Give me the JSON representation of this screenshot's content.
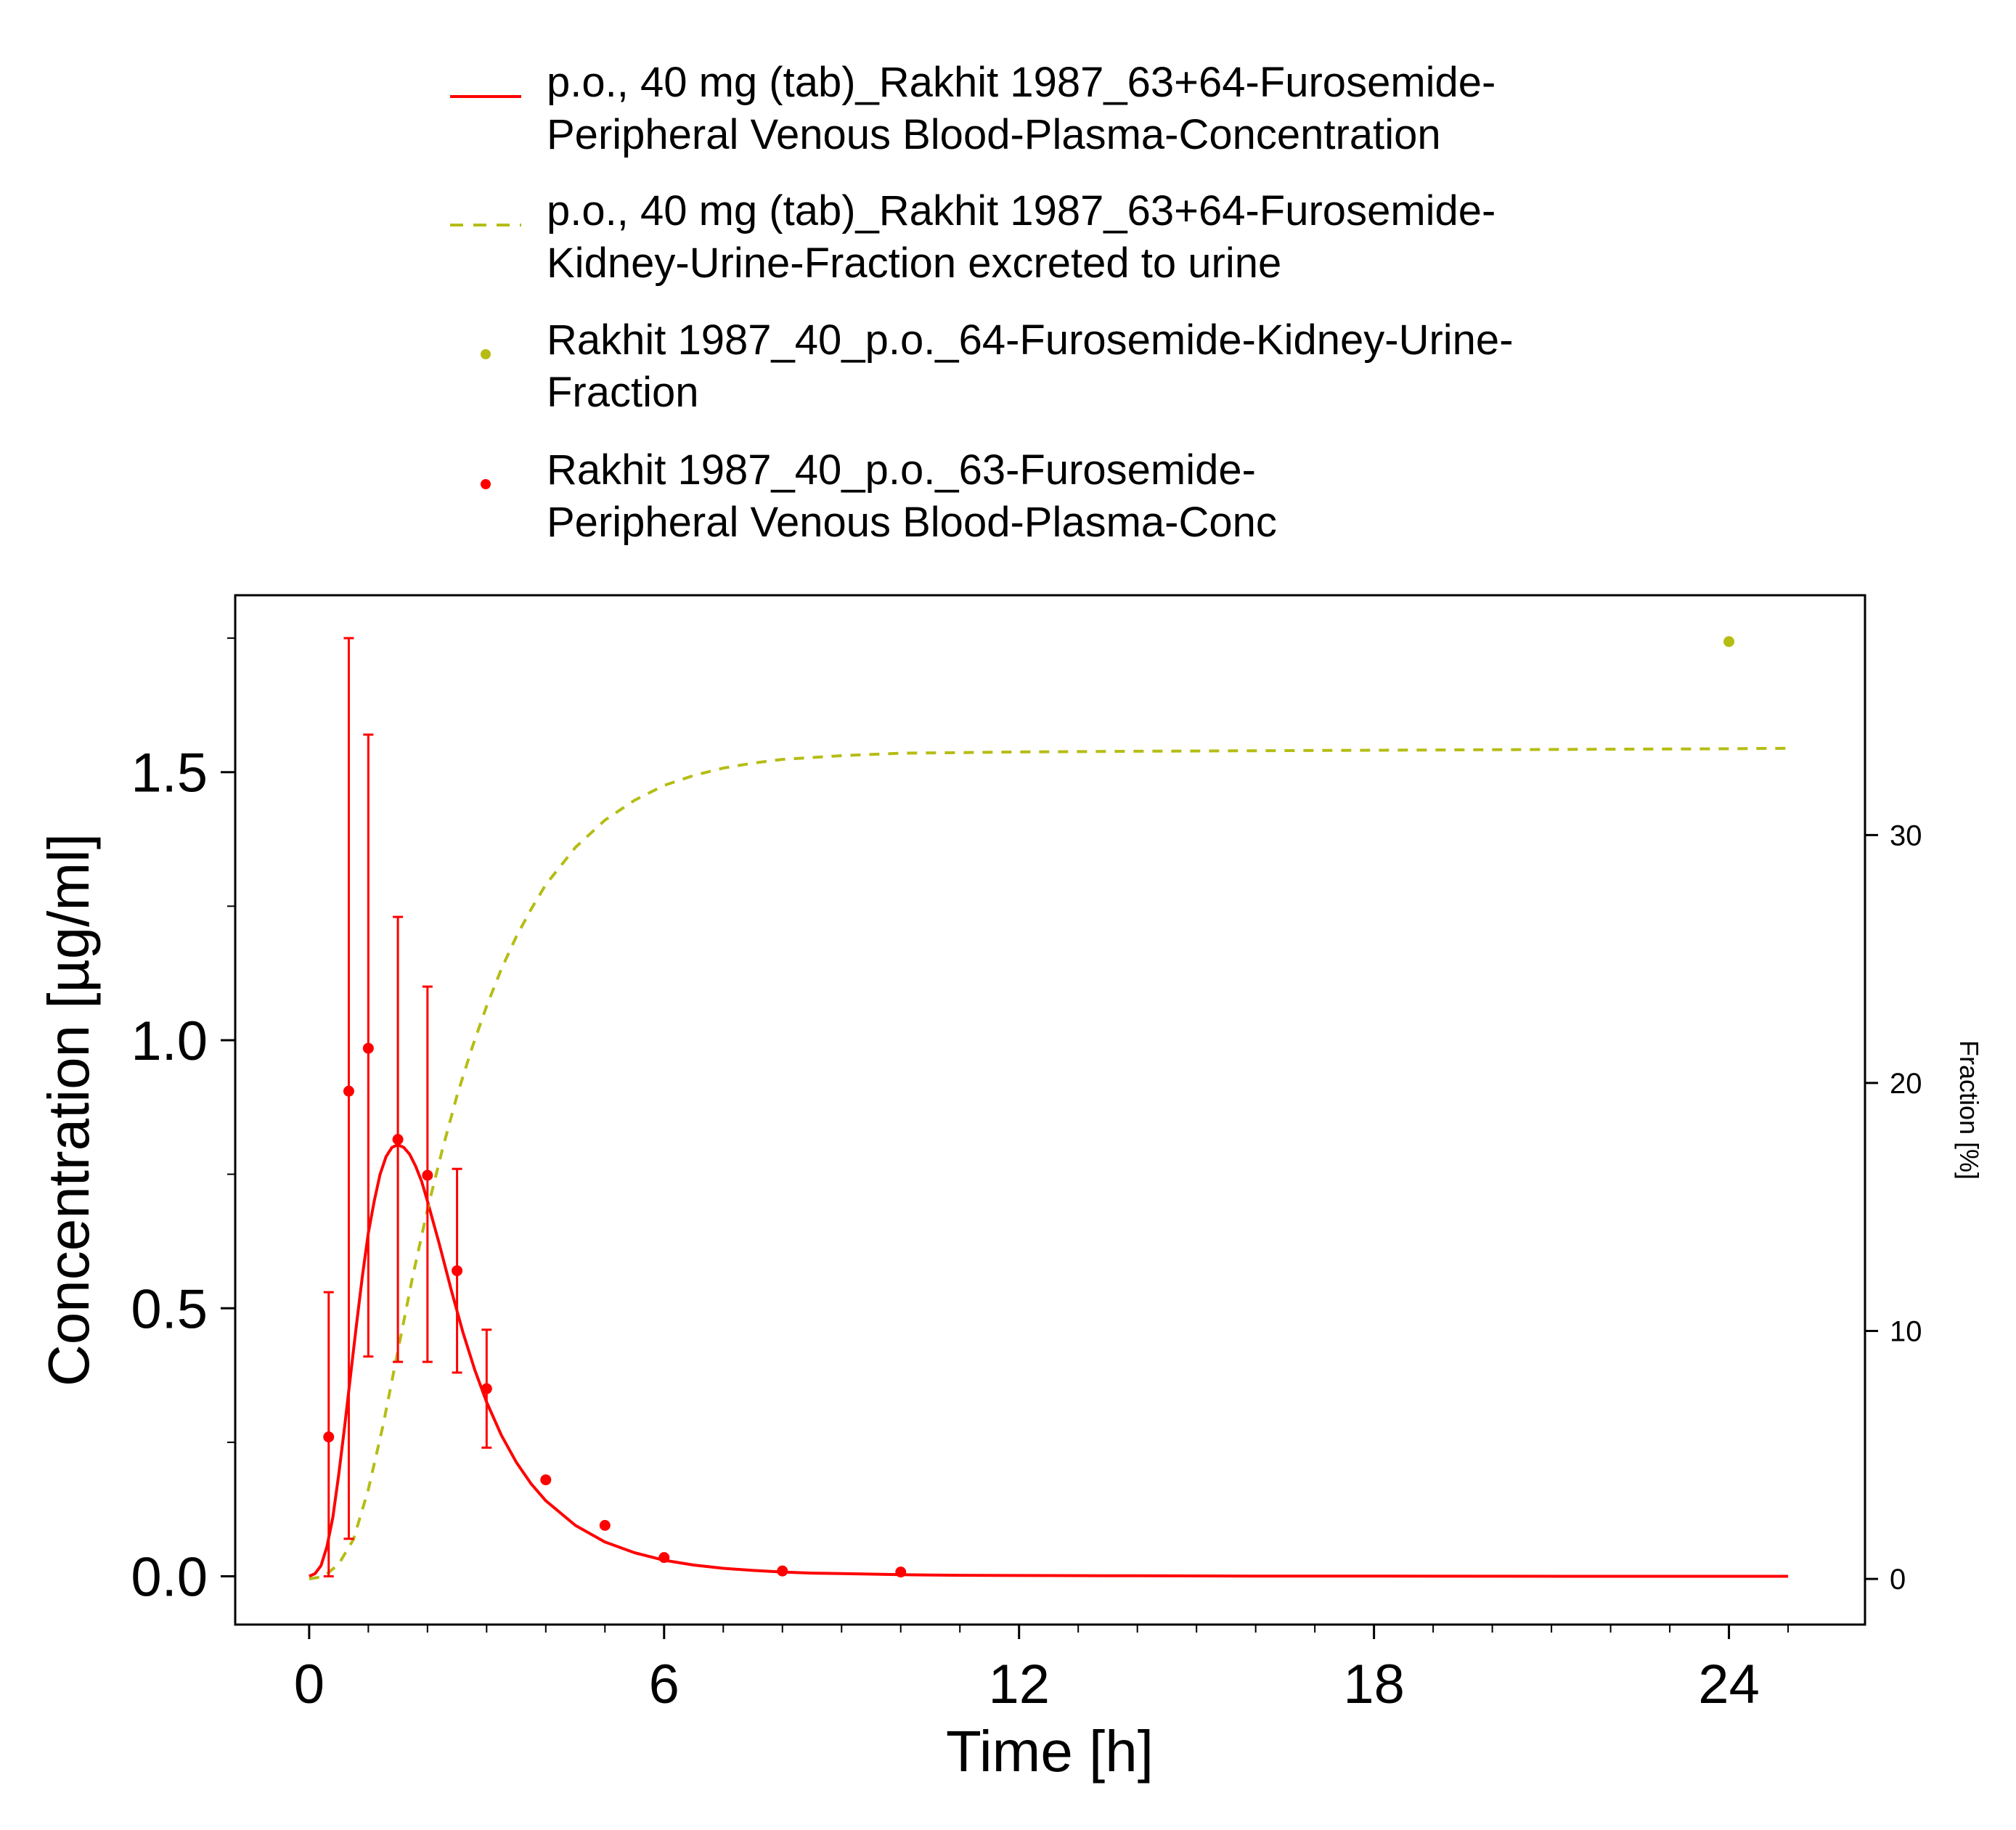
{
  "colors": {
    "sim_conc": "#ff0000",
    "sim_frac": "#b5bd14",
    "obs_frac": "#b5bd14",
    "obs_conc": "#ff0000",
    "axis": "#000000"
  },
  "legend": {
    "items": [
      {
        "line1": "p.o., 40 mg (tab)_Rakhit 1987_63+64-Furosemide-",
        "line2": "Peripheral Venous Blood-Plasma-Concentration",
        "style": "solid",
        "color_key": "sim_conc"
      },
      {
        "line1": "p.o., 40 mg (tab)_Rakhit 1987_63+64-Furosemide-",
        "line2": "Kidney-Urine-Fraction excreted to urine",
        "style": "dashed",
        "color_key": "sim_frac"
      },
      {
        "line1": "Rakhit 1987_40_p.o._64-Furosemide-Kidney-Urine-",
        "line2": "Fraction",
        "style": "point",
        "color_key": "obs_frac"
      },
      {
        "line1": "Rakhit 1987_40_p.o._63-Furosemide-",
        "line2": "Peripheral Venous Blood-Plasma-Conc",
        "style": "point",
        "color_key": "obs_conc"
      }
    ]
  },
  "chart_data": {
    "type": "line",
    "xlabel": "Time [h]",
    "ylabel": "Concentration [µg/ml]",
    "y2label": "Fraction [%]",
    "xlim": [
      -1.25,
      26.3
    ],
    "ylim": [
      -0.09,
      1.83
    ],
    "y2lim": [
      -1.84,
      39.67
    ],
    "x_ticks": [
      0,
      6,
      12,
      18,
      24
    ],
    "x_minor_ticks": [
      1,
      2,
      3,
      4,
      5,
      7,
      8,
      9,
      10,
      11,
      13,
      14,
      15,
      16,
      17,
      19,
      20,
      21,
      22,
      23,
      25
    ],
    "y_ticks": [
      0.0,
      0.5,
      1.0,
      1.5
    ],
    "y_tick_labels": [
      "0.0",
      "0.5",
      "1.0",
      "1.5"
    ],
    "y_minor_ticks": [
      0.25,
      0.75,
      1.25,
      1.75
    ],
    "y2_ticks": [
      0,
      10,
      20,
      30
    ],
    "grid": false,
    "legend_position": "top",
    "series": [
      {
        "name": "p.o., 40 mg (tab)_Rakhit 1987_63+64-Furosemide-Peripheral Venous Blood-Plasma-Concentration",
        "kind": "line",
        "axis": "left",
        "color_key": "sim_conc",
        "style": "solid",
        "x": [
          0,
          0.1,
          0.2,
          0.3,
          0.4,
          0.5,
          0.6,
          0.7,
          0.8,
          0.9,
          1.0,
          1.1,
          1.2,
          1.3,
          1.4,
          1.5,
          1.6,
          1.7,
          1.8,
          1.9,
          2.0,
          2.2,
          2.4,
          2.6,
          2.8,
          3.0,
          3.25,
          3.5,
          3.75,
          4.0,
          4.5,
          5.0,
          5.5,
          6.0,
          6.5,
          7.0,
          7.5,
          8.0,
          8.5,
          9.0,
          10.0,
          11.0,
          12.0,
          14.0,
          16.0,
          18.0,
          20.0,
          22.0,
          24.0,
          25.0
        ],
        "y": [
          0.0,
          0.005,
          0.02,
          0.055,
          0.11,
          0.19,
          0.28,
          0.375,
          0.47,
          0.56,
          0.64,
          0.7,
          0.75,
          0.783,
          0.8,
          0.805,
          0.8,
          0.787,
          0.765,
          0.737,
          0.7,
          0.62,
          0.535,
          0.455,
          0.385,
          0.325,
          0.263,
          0.213,
          0.173,
          0.141,
          0.095,
          0.064,
          0.044,
          0.03,
          0.021,
          0.015,
          0.011,
          0.008,
          0.006,
          0.005,
          0.003,
          0.002,
          0.0015,
          0.001,
          0.0005,
          0.0003,
          0.0002,
          0.0001,
          0.0001,
          0.0
        ]
      },
      {
        "name": "p.o., 40 mg (tab)_Rakhit 1987_63+64-Furosemide-Kidney-Urine-Fraction excreted to urine",
        "kind": "line",
        "axis": "right",
        "color_key": "sim_frac",
        "style": "dashed",
        "x": [
          0,
          0.25,
          0.5,
          0.75,
          1.0,
          1.25,
          1.5,
          1.75,
          2.0,
          2.25,
          2.5,
          2.75,
          3.0,
          3.25,
          3.5,
          3.75,
          4.0,
          4.5,
          5.0,
          5.5,
          6.0,
          6.5,
          7.0,
          7.5,
          8.0,
          9.0,
          10.0,
          12.0,
          14.0,
          16.0,
          18.0,
          20.0,
          22.0,
          24.0,
          25.0
        ],
        "y": [
          0.0,
          0.1,
          0.6,
          1.6,
          3.6,
          6.2,
          9.2,
          12.2,
          14.9,
          17.3,
          19.5,
          21.4,
          23.1,
          24.6,
          25.9,
          27.0,
          28.0,
          29.5,
          30.6,
          31.4,
          32.0,
          32.4,
          32.7,
          32.9,
          33.05,
          33.2,
          33.3,
          33.35,
          33.38,
          33.4,
          33.42,
          33.44,
          33.46,
          33.48,
          33.5
        ]
      },
      {
        "name": "Rakhit 1987_40_p.o._64-Furosemide-Kidney-Urine-Fraction",
        "kind": "points",
        "axis": "right",
        "color_key": "obs_frac",
        "x": [
          24.0
        ],
        "y": [
          37.8
        ]
      },
      {
        "name": "Rakhit 1987_40_p.o._63-Furosemide-Peripheral Venous Blood-Plasma-Conc",
        "kind": "points",
        "axis": "left",
        "color_key": "obs_conc",
        "x": [
          0.33,
          0.67,
          1.0,
          1.5,
          2.0,
          2.5,
          3.0,
          4.0,
          5.0,
          6.0,
          8.0,
          10.0
        ],
        "y": [
          0.26,
          0.905,
          0.985,
          0.815,
          0.748,
          0.57,
          0.35,
          0.18,
          0.095,
          0.035,
          0.01,
          0.008
        ],
        "err_low": [
          0.0,
          0.07,
          0.41,
          0.4,
          0.4,
          0.38,
          0.24,
          null,
          null,
          null,
          null,
          null
        ],
        "err_high": [
          0.53,
          1.75,
          1.57,
          1.23,
          1.1,
          0.76,
          0.46,
          null,
          null,
          null,
          null,
          null
        ]
      }
    ]
  }
}
